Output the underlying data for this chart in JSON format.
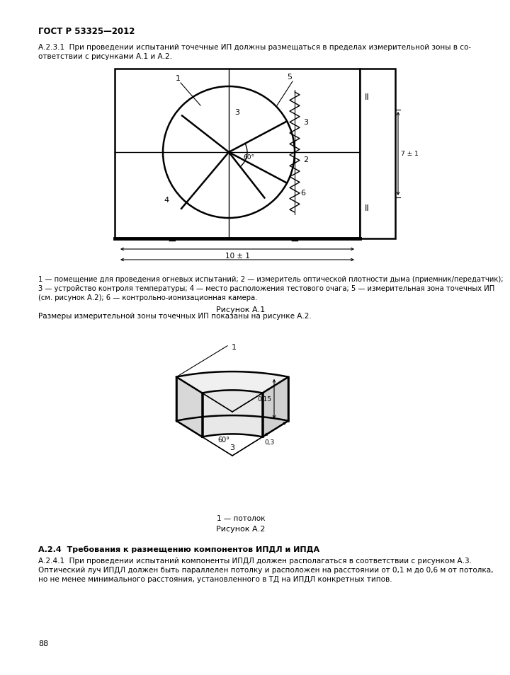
{
  "page_width": 6.61,
  "page_height": 9.35,
  "bg_color": "#ffffff",
  "header_bold": "ГОСТ Р 53325—2012",
  "para_a231_line1": "А.2.3.1  При проведении испытаний точечные ИП должны размещаться в пределах измерительной зоны в со-",
  "para_a231_line2": "ответствии с рисунками А.1 и А.2.",
  "fig1_cap1": "1 — помещение для проведения огневых испытаний; 2 — измеритель оптической плотности дыма (приемник/передатчик);",
  "fig1_cap2": "3 — устройство контроля температуры; 4 — место расположения тестового очага; 5 — измерительная зона точечных ИП",
  "fig1_cap3": "(см. рисунок А.2); 6 — контрольно-ионизационная камера.",
  "fig1_label": "Рисунок А.1",
  "fig2_intro": "Размеры измерительной зоны точечных ИП показаны на рисунке А.2.",
  "fig2_caption": "1 — потолок",
  "fig2_label": "Рисунок А.2",
  "section_a24_head": "А.2.4  Требования к размещению компонентов ИПДЛ и ИПДА",
  "para_a241_line1": "А.2.4.1  При проведении испытаний компоненты ИПДЛ должен располагаться в соответствии с рисунком А.3.",
  "para_a241_line2": "Оптический луч ИПДЛ должен быть параллелен потолку и расположен на расстоянии от 0,1 м до 0,6 м от потолка,",
  "para_a241_line3": "но не менее минимального расстояния, установленного в ТД на ИПДЛ конкретных типов.",
  "page_number": "88"
}
